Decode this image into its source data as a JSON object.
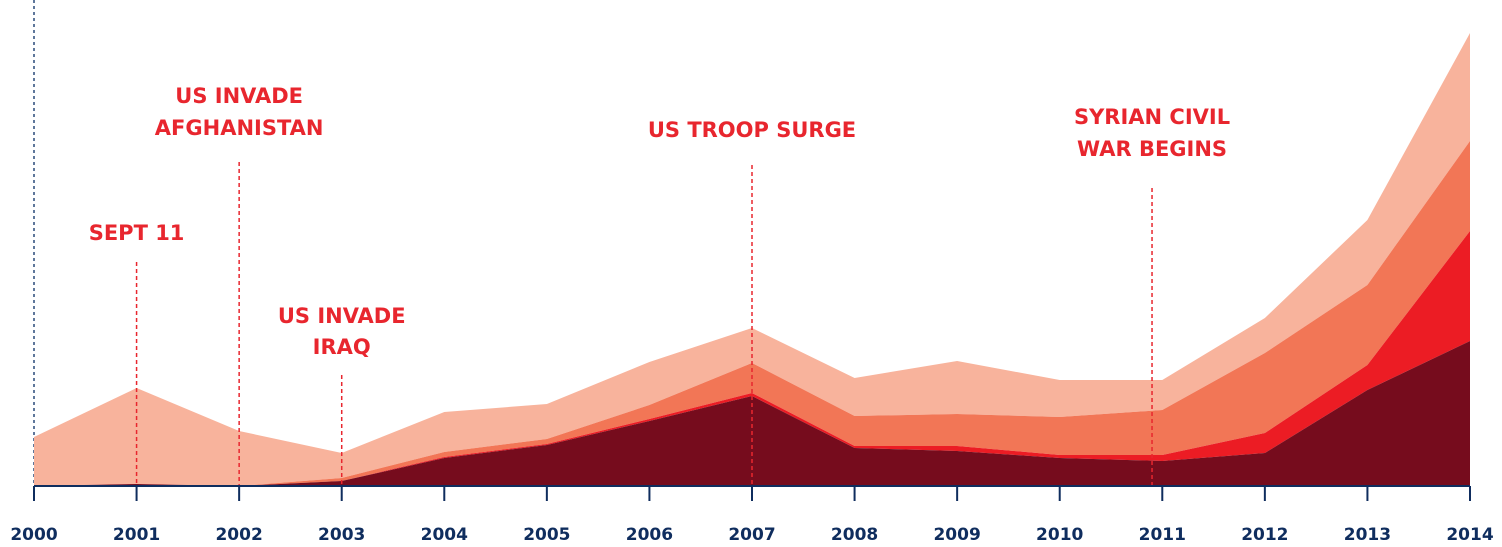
{
  "chart_data": {
    "type": "area",
    "stacked": true,
    "x": [
      2000,
      2001,
      2002,
      2003,
      2004,
      2005,
      2006,
      2007,
      2008,
      2009,
      2010,
      2011,
      2012,
      2013,
      2014
    ],
    "tick_labels": [
      "2000",
      "2001",
      "2002",
      "2003",
      "2004",
      "2005",
      "2006",
      "2007",
      "2008",
      "2009",
      "2010",
      "2011",
      "2012",
      "2013",
      "2014"
    ],
    "yaxis": "none",
    "ylim": [
      0,
      480
    ],
    "grid": false,
    "series": [
      {
        "color": "#760c1d",
        "values": [
          0,
          2,
          0,
          5,
          28,
          41,
          65,
          90,
          38,
          35,
          28,
          25,
          33,
          96,
          145
        ]
      },
      {
        "color": "#ec1c24",
        "values": [
          0,
          0,
          0,
          0,
          1,
          1,
          2,
          3,
          2,
          5,
          3,
          6,
          20,
          25,
          110
        ]
      },
      {
        "color": "#f27656",
        "values": [
          0,
          0,
          0,
          3,
          5,
          5,
          14,
          30,
          30,
          32,
          38,
          45,
          80,
          80,
          90
        ]
      },
      {
        "color": "#f8b39c",
        "values": [
          49,
          96,
          55,
          25,
          40,
          35,
          43,
          35,
          38,
          53,
          37,
          30,
          35,
          65,
          108
        ]
      }
    ],
    "annotations": [
      {
        "x": 2001,
        "lines": [
          "SEPT 11"
        ]
      },
      {
        "x": 2002,
        "lines": [
          "US INVADE",
          "AFGHANISTAN"
        ]
      },
      {
        "x": 2003,
        "lines": [
          "US INVADE",
          "IRAQ"
        ]
      },
      {
        "x": 2007,
        "lines": [
          "US TROOP SURGE"
        ]
      },
      {
        "x": 2010.9,
        "lines": [
          "SYRIAN CIVIL",
          "WAR BEGINS"
        ]
      }
    ],
    "colors": {
      "annotation": "#e8262e",
      "axis": "#0f2d5e",
      "origin_line": "#2a4a7a"
    }
  }
}
